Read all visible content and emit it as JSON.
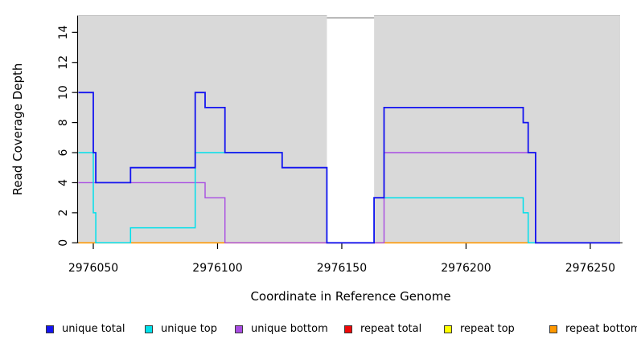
{
  "figure": {
    "x_axis_title": "Coordinate in Reference Genome",
    "y_axis_title": "Read Coverage Depth"
  },
  "chart_data": {
    "type": "line",
    "step": true,
    "title": "",
    "xlabel": "Coordinate in Reference Genome",
    "ylabel": "Read Coverage Depth",
    "xlim": [
      2976044,
      2976262
    ],
    "ylim": [
      0,
      15
    ],
    "x_ticks": [
      2976050,
      2976100,
      2976150,
      2976200,
      2976250
    ],
    "y_ticks": [
      0,
      2,
      4,
      6,
      8,
      10,
      12,
      14
    ],
    "grid": false,
    "legend_position": "bottom",
    "plot_background": "#ffffff",
    "shaded_band_color": "#d9d9d9",
    "shaded_band_border": "#bcbcbc",
    "shaded_regions": [
      {
        "x0": 2976044,
        "x1": 2976144
      },
      {
        "x0": 2976163,
        "x1": 2976262
      }
    ],
    "gap_region": {
      "x0": 2976144,
      "x1": 2976163,
      "top_line_value": 15,
      "top_line_color": "#8f8f8f"
    },
    "axis_color": "#000000",
    "series": [
      {
        "name": "unique total",
        "color": "#1414f0",
        "width": 1.8,
        "points": [
          [
            2976044,
            10
          ],
          [
            2976050,
            10
          ],
          [
            2976050,
            6
          ],
          [
            2976051,
            6
          ],
          [
            2976051,
            4
          ],
          [
            2976065,
            4
          ],
          [
            2976065,
            5
          ],
          [
            2976091,
            5
          ],
          [
            2976091,
            10
          ],
          [
            2976095,
            10
          ],
          [
            2976095,
            9
          ],
          [
            2976103,
            9
          ],
          [
            2976103,
            6
          ],
          [
            2976126,
            6
          ],
          [
            2976126,
            5
          ],
          [
            2976144,
            5
          ],
          [
            2976144,
            0
          ],
          [
            2976163,
            0
          ],
          [
            2976163,
            3
          ],
          [
            2976167,
            3
          ],
          [
            2976167,
            9
          ],
          [
            2976223,
            9
          ],
          [
            2976223,
            8
          ],
          [
            2976225,
            8
          ],
          [
            2976225,
            6
          ],
          [
            2976228,
            6
          ],
          [
            2976228,
            0
          ],
          [
            2976262,
            0
          ]
        ]
      },
      {
        "name": "unique top",
        "color": "#00e0ea",
        "width": 1.5,
        "points": [
          [
            2976044,
            6
          ],
          [
            2976050,
            6
          ],
          [
            2976050,
            2
          ],
          [
            2976051,
            2
          ],
          [
            2976051,
            0
          ],
          [
            2976065,
            0
          ],
          [
            2976065,
            1
          ],
          [
            2976091,
            1
          ],
          [
            2976091,
            6
          ],
          [
            2976126,
            6
          ],
          [
            2976126,
            5
          ],
          [
            2976144,
            5
          ],
          [
            2976144,
            0
          ],
          [
            2976163,
            0
          ],
          [
            2976163,
            3
          ],
          [
            2976223,
            3
          ],
          [
            2976223,
            2
          ],
          [
            2976225,
            2
          ],
          [
            2976225,
            0
          ],
          [
            2976262,
            0
          ]
        ]
      },
      {
        "name": "unique bottom",
        "color": "#a84ce2",
        "width": 1.4,
        "points": [
          [
            2976044,
            4
          ],
          [
            2976095,
            4
          ],
          [
            2976095,
            3
          ],
          [
            2976103,
            3
          ],
          [
            2976103,
            0
          ],
          [
            2976167,
            0
          ],
          [
            2976167,
            6
          ],
          [
            2976228,
            6
          ],
          [
            2976228,
            0
          ],
          [
            2976262,
            0
          ]
        ]
      },
      {
        "name": "repeat total",
        "color": "#ee0808",
        "width": 1.4,
        "points": [
          [
            2976044,
            0
          ],
          [
            2976262,
            0
          ]
        ]
      },
      {
        "name": "repeat top",
        "color": "#ffff00",
        "width": 1.4,
        "points": [
          [
            2976044,
            0
          ],
          [
            2976262,
            0
          ]
        ]
      },
      {
        "name": "repeat bottom",
        "color": "#ff9800",
        "width": 1.7,
        "points": [
          [
            2976044,
            0
          ],
          [
            2976262,
            0
          ]
        ]
      }
    ],
    "draw_order": [
      "repeat total",
      "repeat top",
      "repeat bottom",
      "unique bottom",
      "unique top",
      "unique total"
    ]
  }
}
